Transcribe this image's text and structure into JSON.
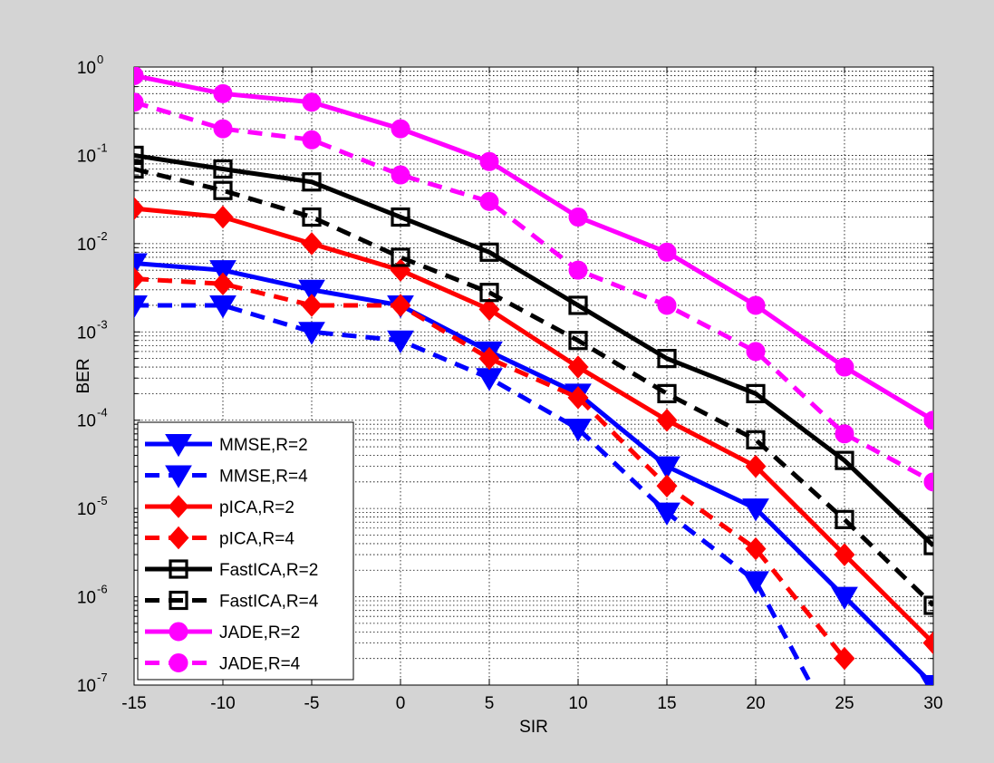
{
  "chart_data": {
    "type": "line",
    "title": "",
    "xlabel": "SIR",
    "ylabel": "BER",
    "xlim": [
      -15,
      30
    ],
    "ylim": [
      1e-07,
      1
    ],
    "yscale": "log",
    "grid": true,
    "legend_position": "bottom-left",
    "x_ticks": [
      "-15",
      "-10",
      "-5",
      "0",
      "5",
      "10",
      "15",
      "20",
      "25",
      "30"
    ],
    "y_tick_base": "10",
    "y_tick_exponents": [
      "0",
      "-1",
      "-2",
      "-3",
      "-4",
      "-5",
      "-6",
      "-7"
    ],
    "x": [
      -15,
      -10,
      -5,
      0,
      5,
      10,
      15,
      20,
      25,
      30
    ],
    "series": [
      {
        "name": "MMSE,R=2",
        "color": "#0000ff",
        "dash": false,
        "marker": "triangle-down",
        "values": [
          0.006,
          0.005,
          0.003,
          0.002,
          0.0006,
          0.0002,
          3e-05,
          1e-05,
          1e-06,
          1e-07
        ]
      },
      {
        "name": "MMSE,R=4",
        "color": "#0000ff",
        "dash": true,
        "marker": "triangle-down",
        "values": [
          0.002,
          0.002,
          0.001,
          0.0008,
          0.0003,
          8e-05,
          9e-06,
          1.5e-06,
          2e-08,
          null
        ]
      },
      {
        "name": "pICA,R=2",
        "color": "#ff0000",
        "dash": false,
        "marker": "diamond",
        "values": [
          0.025,
          0.02,
          0.01,
          0.005,
          0.0018,
          0.0004,
          0.0001,
          3e-05,
          3e-06,
          3e-07
        ]
      },
      {
        "name": "pICA,R=4",
        "color": "#ff0000",
        "dash": true,
        "marker": "diamond",
        "values": [
          0.004,
          0.0035,
          0.002,
          0.002,
          0.0005,
          0.00018,
          1.8e-05,
          3.5e-06,
          2e-07,
          null
        ]
      },
      {
        "name": "FastICA,R=2",
        "color": "#000000",
        "dash": false,
        "marker": "square",
        "values": [
          0.1,
          0.07,
          0.05,
          0.02,
          0.008,
          0.002,
          0.0005,
          0.0002,
          3.5e-05,
          3.8e-06
        ]
      },
      {
        "name": "FastICA,R=4",
        "color": "#000000",
        "dash": true,
        "marker": "square",
        "values": [
          0.07,
          0.04,
          0.02,
          0.007,
          0.0028,
          0.0008,
          0.0002,
          6e-05,
          7.5e-06,
          8e-07
        ]
      },
      {
        "name": "JADE,R=2",
        "color": "#ff00ff",
        "dash": false,
        "marker": "circle",
        "values": [
          0.8,
          0.5,
          0.4,
          0.2,
          0.085,
          0.02,
          0.008,
          0.002,
          0.0004,
          0.0001
        ]
      },
      {
        "name": "JADE,R=4",
        "color": "#ff00ff",
        "dash": true,
        "marker": "circle",
        "values": [
          0.4,
          0.2,
          0.15,
          0.06,
          0.03,
          0.005,
          0.002,
          0.0006,
          7e-05,
          2e-05
        ]
      }
    ]
  }
}
